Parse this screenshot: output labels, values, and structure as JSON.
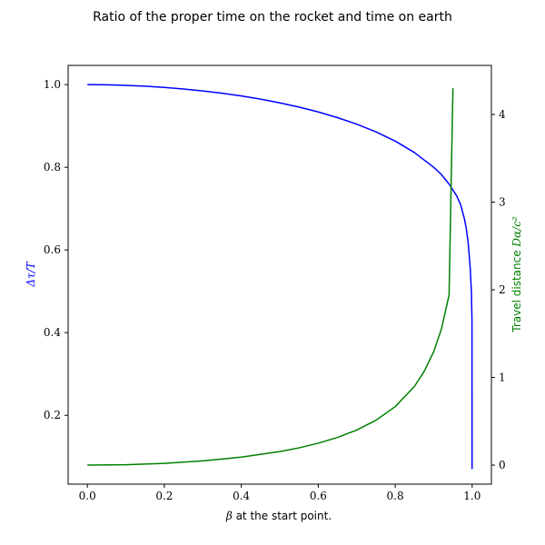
{
  "chart_data": {
    "type": "line",
    "title": "Ratio of the proper time on the rocket and time on earth",
    "xlabel": {
      "text": " at the start point.",
      "symbol": "β"
    },
    "ylabel_left": {
      "symbol": "Δτ/T",
      "color": "#0000ff"
    },
    "ylabel_right": {
      "text": "Travel distance ",
      "symbol": "Dα/c²",
      "color": "#008000"
    },
    "xlim": [
      -0.05,
      1.05
    ],
    "ylim_left": [
      0.0335,
      1.0465
    ],
    "ylim_right": [
      -0.217,
      4.56
    ],
    "x_ticks": [
      "0.0",
      "0.2",
      "0.4",
      "0.6",
      "0.8",
      "1.0"
    ],
    "y_left_ticks": [
      "0.2",
      "0.4",
      "0.6",
      "0.8",
      "1.0"
    ],
    "y_right_ticks": [
      "0",
      "1",
      "2",
      "3",
      "4"
    ],
    "series": [
      {
        "axis": "left",
        "color": "#0000ff",
        "x": [
          0.0,
          0.05,
          0.1,
          0.15,
          0.2,
          0.25,
          0.3,
          0.35,
          0.4,
          0.45,
          0.5,
          0.55,
          0.6,
          0.65,
          0.7,
          0.75,
          0.8,
          0.85,
          0.9,
          0.92,
          0.94,
          0.96,
          0.97,
          0.98,
          0.985,
          0.99,
          0.995,
          0.998,
          0.9995,
          0.99975
        ],
        "values": [
          1.0,
          0.9996,
          0.9983,
          0.9962,
          0.9933,
          0.9895,
          0.9848,
          0.9792,
          0.9726,
          0.9649,
          0.9559,
          0.9457,
          0.9339,
          0.9202,
          0.9044,
          0.8857,
          0.8634,
          0.8357,
          0.8,
          0.7826,
          0.7594,
          0.7305,
          0.7097,
          0.6746,
          0.6502,
          0.6143,
          0.5551,
          0.4993,
          0.43,
          0.07
        ]
      },
      {
        "axis": "right",
        "color": "#008000",
        "x": [
          0.0,
          0.1,
          0.2,
          0.3,
          0.4,
          0.5,
          0.55,
          0.6,
          0.65,
          0.7,
          0.75,
          0.8,
          0.85,
          0.875,
          0.9,
          0.92,
          0.94,
          0.95
        ],
        "values": [
          0.0,
          0.005,
          0.02,
          0.048,
          0.091,
          0.155,
          0.197,
          0.25,
          0.316,
          0.4,
          0.512,
          0.667,
          0.898,
          1.067,
          1.294,
          1.551,
          1.94,
          4.3
        ]
      }
    ]
  }
}
